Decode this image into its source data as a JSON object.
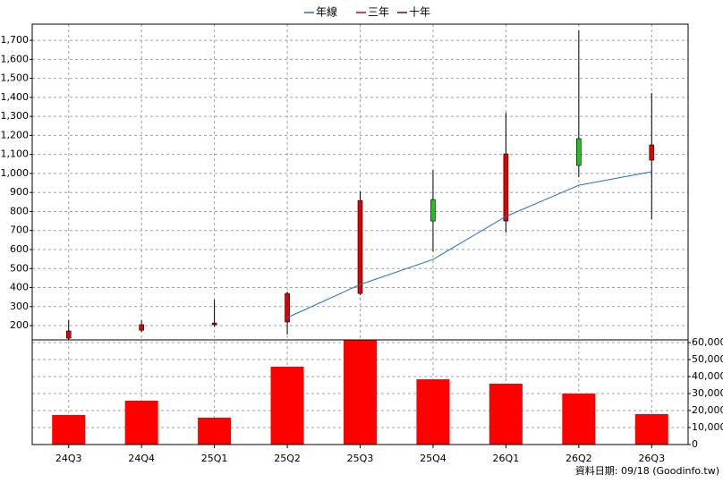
{
  "chart_data": [
    {
      "type": "candlestick",
      "categories": [
        "24Q3",
        "24Q4",
        "25Q1",
        "25Q2",
        "25Q3",
        "25Q4",
        "26Q1",
        "26Q2",
        "26Q3"
      ],
      "open": [
        134,
        176,
        205,
        219,
        369,
        863,
        750,
        1183,
        1070
      ],
      "high": [
        228,
        228,
        336,
        379,
        905,
        1018,
        1319,
        1751,
        1423
      ],
      "low": [
        125,
        167,
        195,
        153,
        360,
        590,
        689,
        980,
        760
      ],
      "close": [
        172,
        205,
        214,
        369,
        858,
        750,
        1103,
        1042,
        1150
      ],
      "up_color": "#e00000",
      "down_color": "#20c020",
      "series": [
        {
          "name": "年線",
          "color": "#1f6fd0",
          "values": [
            null,
            null,
            null,
            242,
            416,
            548,
            774,
            938,
            1009
          ]
        },
        {
          "name": "三年",
          "color": "#e00000",
          "values": [
            null,
            null,
            null,
            null,
            null,
            null,
            null,
            null,
            null
          ]
        },
        {
          "name": "十年",
          "color": "#800040",
          "values": [
            null,
            null,
            null,
            null,
            null,
            null,
            null,
            null,
            null
          ]
        }
      ],
      "ylim": [
        125,
        1785
      ],
      "yticks": [
        200,
        300,
        400,
        500,
        600,
        700,
        800,
        900,
        {
          "value": 1000,
          "label": "1,000"
        },
        {
          "value": 1100,
          "label": "1,100"
        },
        {
          "value": 1200,
          "label": "1,200"
        },
        {
          "value": 1300,
          "label": "1,300"
        },
        {
          "value": 1400,
          "label": "1,400"
        },
        {
          "value": 1500,
          "label": "1,500"
        },
        {
          "value": 1600,
          "label": "1,600"
        },
        {
          "value": 1700,
          "label": "1,700"
        }
      ],
      "grid": true,
      "legend": "top",
      "footnote": "資料日期: 09/18  (Goodinfo.tw)"
    },
    {
      "type": "bar",
      "values": [
        17400,
        25800,
        15800,
        45800,
        61500,
        38400,
        35800,
        30000,
        17900
      ],
      "color": "#ff0000",
      "axis": "y2",
      "y2lim": [
        0,
        61600
      ],
      "y2ticks": [
        0,
        {
          "value": 10000,
          "label": "10,000"
        },
        {
          "value": 20000,
          "label": "20,000"
        },
        {
          "value": 30000,
          "label": "30,000"
        },
        {
          "value": 40000,
          "label": "40,000"
        },
        {
          "value": 50000,
          "label": "50,000"
        },
        {
          "value": 60000,
          "label": "60,000"
        }
      ],
      "grid": true
    }
  ]
}
